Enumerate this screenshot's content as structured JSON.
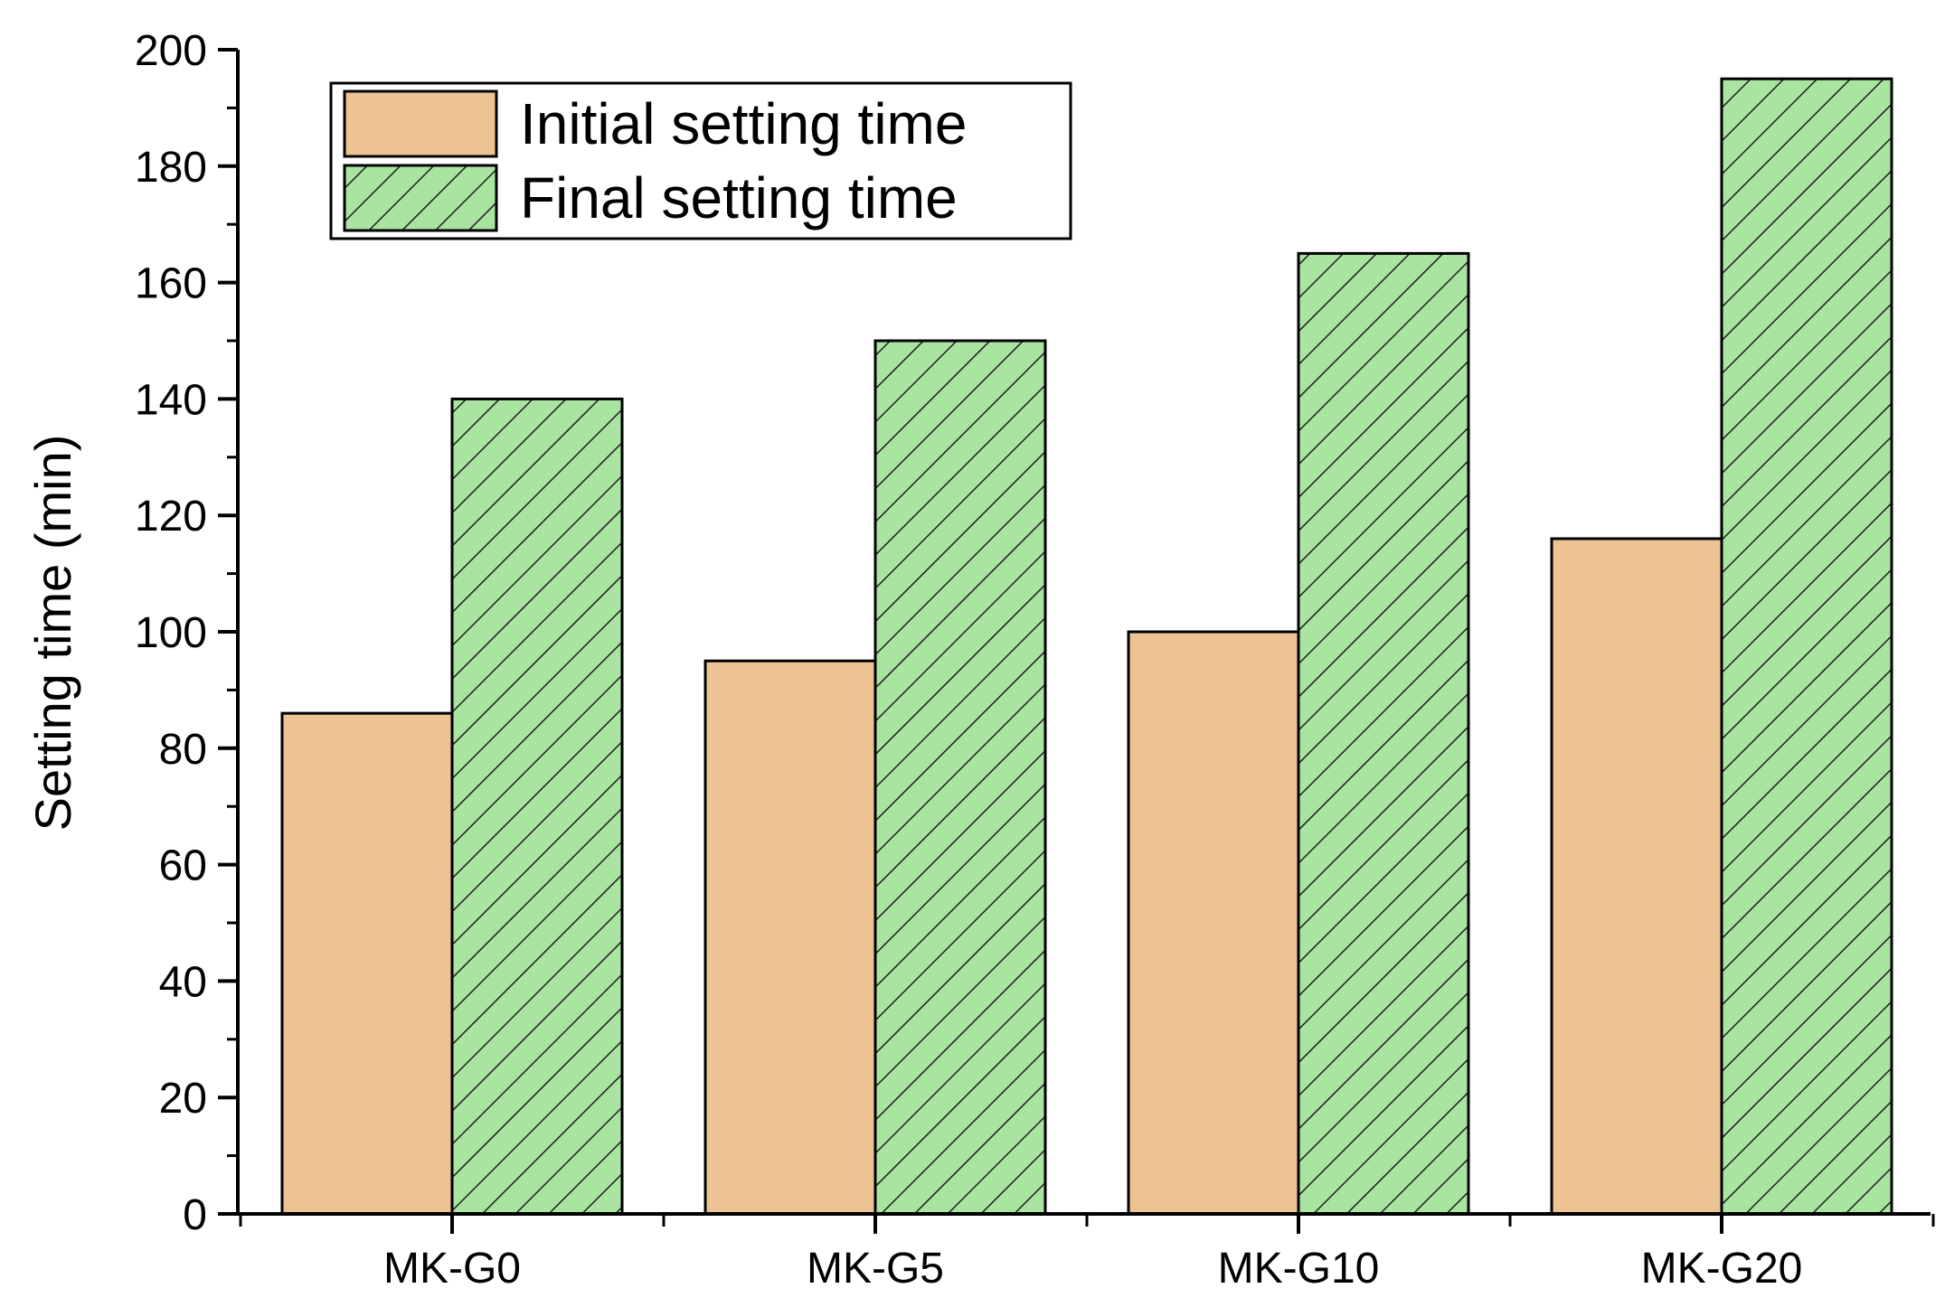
{
  "chart_data": {
    "type": "bar",
    "title": "",
    "xlabel": "",
    "ylabel": "Setting time (min)",
    "ylim": [
      0,
      200
    ],
    "yticks": [
      0,
      20,
      40,
      60,
      80,
      100,
      120,
      140,
      160,
      180,
      200
    ],
    "ytick_labels": [
      "0",
      "20",
      "40",
      "60",
      "80",
      "100",
      "120",
      "140",
      "160",
      "180",
      "200"
    ],
    "categories": [
      "MK-G0",
      "MK-G5",
      "MK-G10",
      "MK-G20"
    ],
    "series": [
      {
        "name": "Initial setting time",
        "values": [
          86,
          95,
          100,
          116
        ],
        "color": "#EEC394",
        "pattern": "solid"
      },
      {
        "name": "Final setting time",
        "values": [
          140,
          150,
          165,
          195
        ],
        "color": "#A9E4A0",
        "pattern": "hatched"
      }
    ],
    "legend": {
      "position": "top-left"
    },
    "grid": false
  }
}
